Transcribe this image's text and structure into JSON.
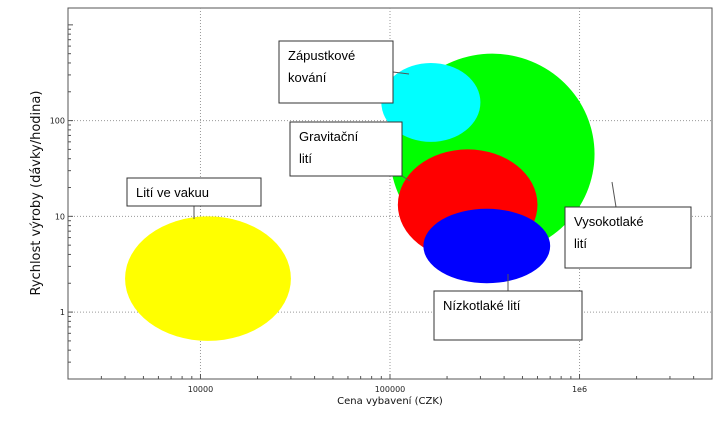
{
  "chart_data": {
    "type": "bubble",
    "xlabel": "Cena vybavení  (CZK)",
    "ylabel": "Rychlost výroby (dávky/hodina)",
    "x_scale": "log",
    "y_scale": "log",
    "xlim": [
      2000,
      5000000
    ],
    "ylim": [
      0.2,
      1500
    ],
    "x_ticks": [
      10000,
      100000,
      1000000
    ],
    "x_tick_labels": [
      "10000",
      "100000",
      "1e6"
    ],
    "y_ticks": [
      1,
      10,
      100
    ],
    "y_tick_labels": [
      "1",
      "10",
      "100"
    ],
    "grid": true,
    "series": [
      {
        "name": "Lití ve vakuu",
        "color": "#ffff00",
        "x_range": [
          4000,
          30000
        ],
        "y_range": [
          0.5,
          10
        ]
      },
      {
        "name": "Vysokotlaké lití",
        "color": "#00ff00",
        "x_range": [
          100000,
          1200000
        ],
        "y_range": [
          4,
          500
        ]
      },
      {
        "name": "Zápustkové kování",
        "color": "#00ffff",
        "x_range": [
          90000,
          300000
        ],
        "y_range": [
          60,
          400
        ]
      },
      {
        "name": "Gravitační lití",
        "color": "#ff0000",
        "x_range": [
          110000,
          600000
        ],
        "y_range": [
          3.5,
          50
        ]
      },
      {
        "name": "Nízkotlaké lití",
        "color": "#0000ff",
        "x_range": [
          150000,
          700000
        ],
        "y_range": [
          2,
          12
        ]
      }
    ],
    "labels": [
      {
        "text": [
          "Lití ve vakuu"
        ],
        "series": 0
      },
      {
        "text": [
          "Zápustkové",
          "kování"
        ],
        "series": 2
      },
      {
        "text": [
          "Gravitační",
          "lití"
        ],
        "series": 3
      },
      {
        "text": [
          "Vysokotlaké",
          "lití"
        ],
        "series": 1
      },
      {
        "text": [
          "Nízkotlaké lití"
        ],
        "series": 4
      }
    ]
  }
}
